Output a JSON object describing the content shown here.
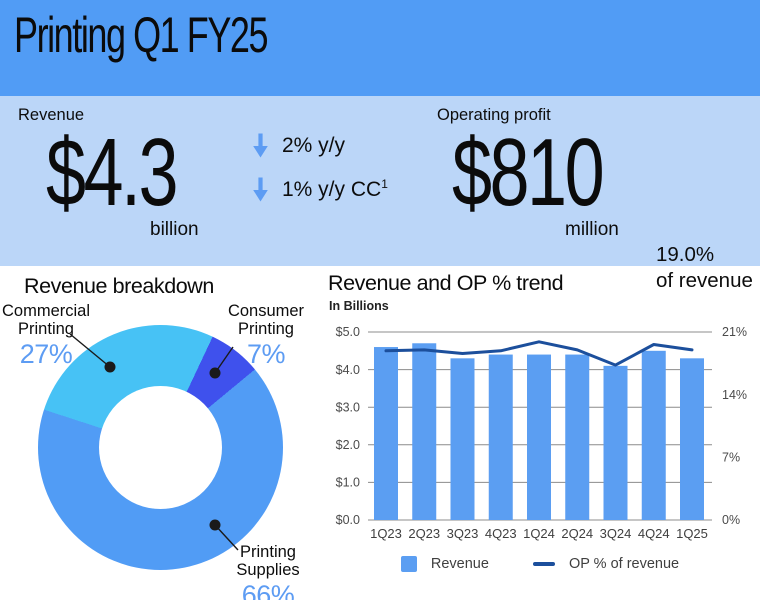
{
  "header": {
    "title": "Printing Q1 FY25"
  },
  "colors": {
    "header_bg": "#519CF5",
    "band_bg": "#BBD6F8",
    "accent_blue": "#5D9CF3",
    "leader_line": "#1A1A1A",
    "axis_text": "#4B4B4B",
    "gridline": "#8C8C8C"
  },
  "icons": {
    "change_icon": "down-arrow"
  },
  "metrics": {
    "revenue": {
      "label": "Revenue",
      "value": "$4.3",
      "unit": "billion",
      "changes": [
        {
          "direction": "down",
          "text": "2% y/y",
          "superscript": ""
        },
        {
          "direction": "down",
          "text": "1% y/y CC",
          "superscript": "1"
        }
      ]
    },
    "operating_profit": {
      "label": "Operating profit",
      "value": "$810",
      "unit": "million",
      "margin_value": "19.0%",
      "margin_caption": "of revenue"
    }
  },
  "chart_data": [
    {
      "id": "revenue-breakdown",
      "type": "pie",
      "donut": true,
      "title": "Revenue breakdown",
      "start_angle_deg": -72,
      "segments": [
        {
          "label": "Commercial Printing",
          "value": 27,
          "pct_label": "27%",
          "color": "#47C2F5"
        },
        {
          "label": "Consumer Printing",
          "value": 7,
          "pct_label": "7%",
          "color": "#3F51ED"
        },
        {
          "label": "Printing Supplies",
          "value": 66,
          "pct_label": "66%",
          "color": "#519CF5"
        }
      ]
    },
    {
      "id": "revenue-op-trend",
      "type": "bar+line",
      "title": "Revenue and OP % trend",
      "subtitle": "In Billions",
      "categories": [
        "1Q23",
        "2Q23",
        "3Q23",
        "4Q23",
        "1Q24",
        "2Q24",
        "3Q24",
        "4Q24",
        "1Q25"
      ],
      "series": [
        {
          "name": "Revenue",
          "type": "bar",
          "axis": "left",
          "color": "#5B9EF2",
          "values": [
            4.6,
            4.7,
            4.3,
            4.4,
            4.4,
            4.4,
            4.1,
            4.5,
            4.3
          ]
        },
        {
          "name": "OP % of revenue",
          "type": "line",
          "axis": "right",
          "color": "#1C4F9C",
          "values": [
            18.9,
            19.0,
            18.6,
            18.9,
            19.9,
            19.0,
            17.3,
            19.6,
            19.0
          ]
        }
      ],
      "left_axis": {
        "ticks": [
          "$5.0",
          "$4.0",
          "$3.0",
          "$2.0",
          "$1.0",
          "$0.0"
        ],
        "min": 0,
        "max": 5
      },
      "right_axis": {
        "ticks": [
          "21%",
          "14%",
          "7%",
          "0%"
        ],
        "min": 0,
        "max": 21
      },
      "grid": true,
      "legend_position": "bottom"
    }
  ]
}
